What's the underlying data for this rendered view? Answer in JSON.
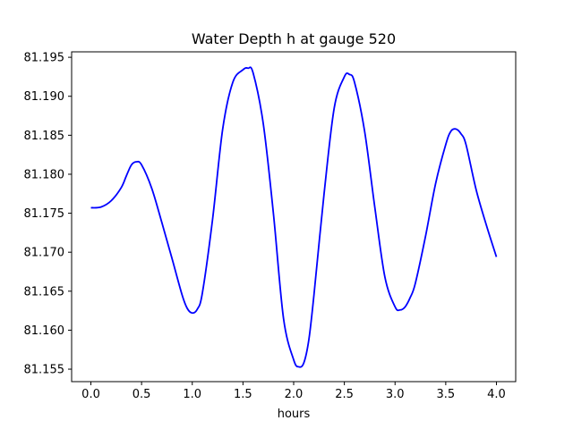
{
  "chart_data": {
    "type": "line",
    "title": "Water Depth h at gauge 520",
    "xlabel": "hours",
    "ylabel": "",
    "xlim": [
      -0.19,
      4.19
    ],
    "ylim": [
      81.1534,
      81.1957
    ],
    "xticks": [
      0.0,
      0.5,
      1.0,
      1.5,
      2.0,
      2.5,
      3.0,
      3.5,
      4.0
    ],
    "xtick_labels": [
      "0.0",
      "0.5",
      "1.0",
      "1.5",
      "2.0",
      "2.5",
      "3.0",
      "3.5",
      "4.0"
    ],
    "yticks": [
      81.155,
      81.16,
      81.165,
      81.17,
      81.175,
      81.18,
      81.185,
      81.19,
      81.195
    ],
    "ytick_labels": [
      "81.155",
      "81.160",
      "81.165",
      "81.170",
      "81.175",
      "81.180",
      "81.185",
      "81.190",
      "81.195"
    ],
    "grid": false,
    "legend": "none",
    "series": [
      {
        "color": "#0000ff",
        "x": [
          0.0,
          0.1,
          0.2,
          0.3,
          0.35,
          0.4,
          0.45,
          0.5,
          0.6,
          0.7,
          0.8,
          0.9,
          0.95,
          1.0,
          1.05,
          1.1,
          1.2,
          1.3,
          1.4,
          1.5,
          1.55,
          1.6,
          1.7,
          1.8,
          1.9,
          2.0,
          2.05,
          2.1,
          2.15,
          2.2,
          2.3,
          2.4,
          2.5,
          2.55,
          2.6,
          2.7,
          2.8,
          2.9,
          3.0,
          3.05,
          3.1,
          3.15,
          3.2,
          3.3,
          3.4,
          3.5,
          3.55,
          3.6,
          3.65,
          3.7,
          3.8,
          3.9,
          4.0
        ],
        "y": [
          81.1757,
          81.1758,
          81.1766,
          81.1783,
          81.1798,
          81.1812,
          81.1816,
          81.1812,
          81.1782,
          81.1738,
          81.1692,
          81.1645,
          81.1628,
          81.1622,
          81.1627,
          81.1648,
          81.1742,
          81.1858,
          81.1918,
          81.1934,
          81.1936,
          81.193,
          81.1865,
          81.175,
          81.1615,
          81.1562,
          81.1553,
          81.1558,
          81.1588,
          81.1645,
          81.1775,
          81.1885,
          81.1925,
          81.1928,
          81.1918,
          81.1855,
          81.1758,
          81.1668,
          81.163,
          81.1626,
          81.163,
          81.1642,
          81.166,
          81.172,
          81.1788,
          81.1838,
          81.1855,
          81.1858,
          81.1852,
          81.1838,
          81.178,
          81.1735,
          81.1694
        ]
      }
    ]
  }
}
